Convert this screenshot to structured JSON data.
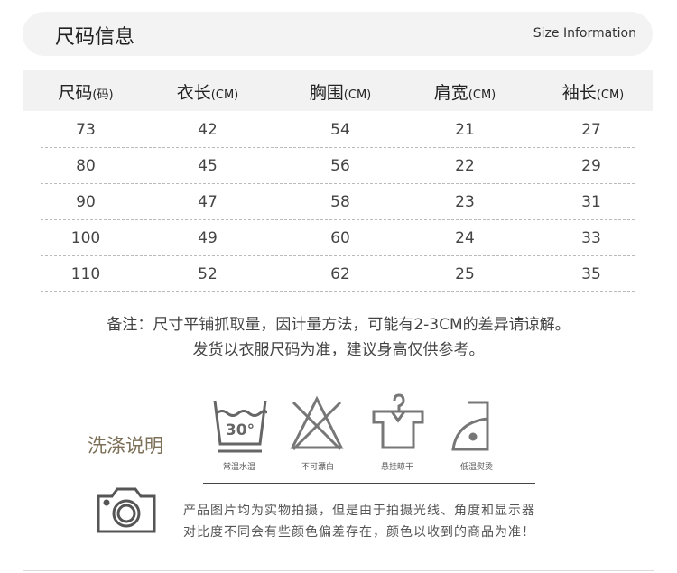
{
  "header": {
    "title": "尺码信息",
    "subtitle": "Size Information"
  },
  "table": {
    "columns": [
      {
        "label": "尺码",
        "unit": "(码)"
      },
      {
        "label": "衣长",
        "unit": "(CM)"
      },
      {
        "label": "胸围",
        "unit": "(CM)"
      },
      {
        "label": "肩宽",
        "unit": "(CM)"
      },
      {
        "label": "袖长",
        "unit": "(CM)"
      }
    ],
    "rows": [
      [
        "73",
        "42",
        "54",
        "21",
        "27"
      ],
      [
        "80",
        "45",
        "56",
        "22",
        "29"
      ],
      [
        "90",
        "47",
        "58",
        "23",
        "31"
      ],
      [
        "100",
        "49",
        "60",
        "24",
        "33"
      ],
      [
        "110",
        "52",
        "62",
        "25",
        "35"
      ]
    ]
  },
  "notes": [
    "备注：尺寸平铺抓取量，因计量方法，可能有2-3CM的差异请谅解。",
    "发货以衣服尺码为准，建议身高仅供参考。"
  ],
  "care": {
    "title": "洗涤说明",
    "items": [
      {
        "icon": "wash-30-icon",
        "label": "常温水温",
        "temp": "30°"
      },
      {
        "icon": "no-bleach-icon",
        "label": "不可漂白"
      },
      {
        "icon": "hang-dry-icon",
        "label": "悬挂晾干"
      },
      {
        "icon": "low-iron-icon",
        "label": "低温熨烫"
      }
    ]
  },
  "photo_note": [
    "产品图片均为实物拍摄，但是由于拍摄光线、角度和显示器",
    "对比度不同会有些颜色偏差存在，颜色以收到的商品为准！"
  ]
}
